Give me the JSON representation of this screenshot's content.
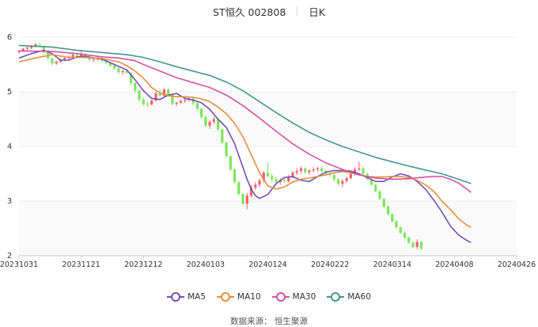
{
  "header": {
    "title": "ST恒久 002808",
    "period": "日K"
  },
  "footer": {
    "source": "数据来源：  恒生聚源"
  },
  "colors": {
    "up": "#f4636b",
    "down": "#7ee65a",
    "grid": "#ececec",
    "axis": "#c8c8c8"
  },
  "chart_data": {
    "type": "candlestick",
    "title": "ST恒久 002808",
    "ylim": [
      2,
      6
    ],
    "yticks": [
      2,
      3,
      4,
      5,
      6
    ],
    "date_ticks": [
      {
        "index": 0,
        "label": "20231031"
      },
      {
        "index": 15,
        "label": "20231121"
      },
      {
        "index": 30,
        "label": "20231212"
      },
      {
        "index": 45,
        "label": "20240103"
      },
      {
        "index": 60,
        "label": "20240124"
      },
      {
        "index": 75,
        "label": "20240222"
      },
      {
        "index": 90,
        "label": "20240314"
      },
      {
        "index": 105,
        "label": "20240408"
      },
      {
        "index": 120,
        "label": "20240426"
      }
    ],
    "ohlc": [
      [
        5.73,
        5.77,
        5.7,
        5.75
      ],
      [
        5.75,
        5.8,
        5.73,
        5.79
      ],
      [
        5.79,
        5.83,
        5.76,
        5.81
      ],
      [
        5.8,
        5.86,
        5.78,
        5.84
      ],
      [
        5.84,
        5.89,
        5.81,
        5.87
      ],
      [
        5.86,
        5.91,
        5.82,
        5.84
      ],
      [
        5.84,
        5.86,
        5.71,
        5.74
      ],
      [
        5.74,
        5.76,
        5.58,
        5.62
      ],
      [
        5.61,
        5.63,
        5.48,
        5.52
      ],
      [
        5.52,
        5.57,
        5.49,
        5.55
      ],
      [
        5.55,
        5.61,
        5.53,
        5.59
      ],
      [
        5.59,
        5.64,
        5.56,
        5.62
      ],
      [
        5.62,
        5.66,
        5.58,
        5.64
      ],
      [
        5.64,
        5.7,
        5.61,
        5.68
      ],
      [
        5.67,
        5.71,
        5.62,
        5.64
      ],
      [
        5.64,
        5.75,
        5.62,
        5.7
      ],
      [
        5.69,
        5.71,
        5.6,
        5.63
      ],
      [
        5.63,
        5.66,
        5.56,
        5.59
      ],
      [
        5.59,
        5.63,
        5.55,
        5.6
      ],
      [
        5.6,
        5.65,
        5.57,
        5.62
      ],
      [
        5.62,
        5.64,
        5.54,
        5.57
      ],
      [
        5.57,
        5.59,
        5.5,
        5.53
      ],
      [
        5.53,
        5.55,
        5.45,
        5.48
      ],
      [
        5.48,
        5.5,
        5.4,
        5.43
      ],
      [
        5.43,
        5.44,
        5.33,
        5.36
      ],
      [
        5.36,
        5.4,
        5.31,
        5.38
      ],
      [
        5.38,
        5.42,
        5.33,
        5.35
      ],
      [
        5.35,
        5.36,
        5.12,
        5.16
      ],
      [
        5.16,
        5.18,
        4.98,
        5.02
      ],
      [
        5.02,
        5.04,
        4.82,
        4.86
      ],
      [
        4.86,
        4.9,
        4.74,
        4.78
      ],
      [
        4.78,
        4.82,
        4.72,
        4.77
      ],
      [
        4.77,
        4.86,
        4.75,
        4.84
      ],
      [
        4.84,
        5.0,
        4.82,
        4.97
      ],
      [
        4.97,
        5.04,
        4.9,
        4.93
      ],
      [
        4.93,
        5.08,
        4.91,
        5.04
      ],
      [
        5.04,
        5.07,
        4.92,
        4.95
      ],
      [
        4.95,
        4.97,
        4.75,
        4.78
      ],
      [
        4.78,
        4.82,
        4.74,
        4.8
      ],
      [
        4.8,
        4.86,
        4.78,
        4.83
      ],
      [
        4.83,
        4.88,
        4.8,
        4.85
      ],
      [
        4.85,
        4.9,
        4.82,
        4.88
      ],
      [
        4.88,
        4.9,
        4.76,
        4.79
      ],
      [
        4.79,
        4.82,
        4.66,
        4.69
      ],
      [
        4.69,
        4.71,
        4.5,
        4.54
      ],
      [
        4.54,
        4.57,
        4.35,
        4.38
      ],
      [
        4.38,
        4.48,
        4.32,
        4.45
      ],
      [
        4.45,
        4.55,
        4.41,
        4.5
      ],
      [
        4.5,
        4.52,
        4.28,
        4.31
      ],
      [
        4.31,
        4.33,
        4.04,
        4.07
      ],
      [
        4.07,
        4.09,
        3.79,
        3.82
      ],
      [
        3.82,
        3.84,
        3.55,
        3.58
      ],
      [
        3.58,
        3.6,
        3.32,
        3.35
      ],
      [
        3.35,
        3.37,
        3.1,
        3.13
      ],
      [
        3.13,
        3.15,
        2.92,
        2.95
      ],
      [
        2.95,
        3.15,
        2.85,
        3.1
      ],
      [
        3.1,
        3.3,
        3.06,
        3.25
      ],
      [
        3.25,
        3.35,
        3.2,
        3.3
      ],
      [
        3.3,
        3.42,
        3.25,
        3.38
      ],
      [
        3.38,
        3.55,
        3.34,
        3.52
      ],
      [
        3.52,
        3.7,
        3.48,
        3.45
      ],
      [
        3.45,
        3.5,
        3.36,
        3.4
      ],
      [
        3.4,
        3.45,
        3.32,
        3.35
      ],
      [
        3.35,
        3.42,
        3.3,
        3.38
      ],
      [
        3.38,
        3.44,
        3.33,
        3.36
      ],
      [
        3.36,
        3.48,
        3.34,
        3.45
      ],
      [
        3.45,
        3.55,
        3.42,
        3.52
      ],
      [
        3.52,
        3.6,
        3.48,
        3.55
      ],
      [
        3.55,
        3.64,
        3.5,
        3.6
      ],
      [
        3.6,
        3.62,
        3.5,
        3.53
      ],
      [
        3.53,
        3.58,
        3.48,
        3.56
      ],
      [
        3.56,
        3.62,
        3.52,
        3.58
      ],
      [
        3.58,
        3.63,
        3.54,
        3.6
      ],
      [
        3.6,
        3.64,
        3.52,
        3.55
      ],
      [
        3.55,
        3.58,
        3.46,
        3.5
      ],
      [
        3.5,
        3.55,
        3.44,
        3.48
      ],
      [
        3.48,
        3.5,
        3.36,
        3.4
      ],
      [
        3.4,
        3.42,
        3.28,
        3.32
      ],
      [
        3.32,
        3.4,
        3.26,
        3.37
      ],
      [
        3.37,
        3.45,
        3.33,
        3.42
      ],
      [
        3.42,
        3.52,
        3.4,
        3.5
      ],
      [
        3.5,
        3.62,
        3.46,
        3.58
      ],
      [
        3.58,
        3.72,
        3.55,
        3.6
      ],
      [
        3.6,
        3.64,
        3.48,
        3.5
      ],
      [
        3.5,
        3.52,
        3.38,
        3.4
      ],
      [
        3.4,
        3.44,
        3.28,
        3.3
      ],
      [
        3.3,
        3.32,
        3.16,
        3.18
      ],
      [
        3.18,
        3.2,
        3.02,
        3.04
      ],
      [
        3.04,
        3.06,
        2.88,
        2.9
      ],
      [
        2.9,
        2.92,
        2.74,
        2.76
      ],
      [
        2.76,
        2.78,
        2.61,
        2.63
      ],
      [
        2.63,
        2.65,
        2.5,
        2.52
      ],
      [
        2.52,
        2.54,
        2.4,
        2.42
      ],
      [
        2.42,
        2.44,
        2.31,
        2.33
      ],
      [
        2.33,
        2.35,
        2.22,
        2.24
      ],
      [
        2.24,
        2.26,
        2.14,
        2.16
      ],
      [
        2.16,
        2.3,
        2.12,
        2.25
      ],
      [
        2.25,
        2.27,
        2.1,
        2.13
      ]
    ],
    "series": [
      {
        "name": "MA5",
        "color": "#7051b6",
        "points": [
          [
            0,
            5.62
          ],
          [
            3,
            5.7
          ],
          [
            6,
            5.76
          ],
          [
            8,
            5.7
          ],
          [
            10,
            5.58
          ],
          [
            12,
            5.58
          ],
          [
            14,
            5.64
          ],
          [
            16,
            5.65
          ],
          [
            18,
            5.62
          ],
          [
            20,
            5.6
          ],
          [
            23,
            5.5
          ],
          [
            26,
            5.4
          ],
          [
            28,
            5.22
          ],
          [
            30,
            5.02
          ],
          [
            32,
            4.88
          ],
          [
            34,
            4.86
          ],
          [
            36,
            4.94
          ],
          [
            38,
            4.97
          ],
          [
            40,
            4.88
          ],
          [
            42,
            4.85
          ],
          [
            44,
            4.8
          ],
          [
            46,
            4.68
          ],
          [
            48,
            4.5
          ],
          [
            50,
            4.35
          ],
          [
            52,
            4.05
          ],
          [
            54,
            3.62
          ],
          [
            55,
            3.4
          ],
          [
            56,
            3.22
          ],
          [
            57,
            3.1
          ],
          [
            58,
            3.05
          ],
          [
            60,
            3.12
          ],
          [
            62,
            3.32
          ],
          [
            64,
            3.43
          ],
          [
            66,
            3.45
          ],
          [
            68,
            3.38
          ],
          [
            70,
            3.36
          ],
          [
            72,
            3.45
          ],
          [
            74,
            3.53
          ],
          [
            76,
            3.56
          ],
          [
            78,
            3.56
          ],
          [
            80,
            3.55
          ],
          [
            82,
            3.5
          ],
          [
            84,
            3.43
          ],
          [
            86,
            3.36
          ],
          [
            88,
            3.36
          ],
          [
            90,
            3.44
          ],
          [
            92,
            3.5
          ],
          [
            94,
            3.46
          ],
          [
            96,
            3.36
          ],
          [
            98,
            3.22
          ],
          [
            100,
            3.02
          ],
          [
            102,
            2.8
          ],
          [
            104,
            2.55
          ],
          [
            106,
            2.38
          ],
          [
            108,
            2.28
          ],
          [
            109,
            2.24
          ]
        ]
      },
      {
        "name": "MA10",
        "color": "#e48d3e",
        "points": [
          [
            0,
            5.55
          ],
          [
            4,
            5.62
          ],
          [
            8,
            5.68
          ],
          [
            12,
            5.63
          ],
          [
            16,
            5.63
          ],
          [
            20,
            5.61
          ],
          [
            24,
            5.55
          ],
          [
            26,
            5.48
          ],
          [
            28,
            5.38
          ],
          [
            30,
            5.25
          ],
          [
            32,
            5.08
          ],
          [
            34,
            4.98
          ],
          [
            36,
            4.93
          ],
          [
            38,
            4.91
          ],
          [
            40,
            4.91
          ],
          [
            42,
            4.9
          ],
          [
            44,
            4.87
          ],
          [
            46,
            4.82
          ],
          [
            48,
            4.72
          ],
          [
            50,
            4.6
          ],
          [
            52,
            4.42
          ],
          [
            54,
            4.18
          ],
          [
            56,
            3.85
          ],
          [
            58,
            3.52
          ],
          [
            60,
            3.28
          ],
          [
            62,
            3.22
          ],
          [
            64,
            3.26
          ],
          [
            66,
            3.35
          ],
          [
            68,
            3.4
          ],
          [
            70,
            3.42
          ],
          [
            72,
            3.45
          ],
          [
            74,
            3.48
          ],
          [
            76,
            3.52
          ],
          [
            78,
            3.54
          ],
          [
            80,
            3.52
          ],
          [
            82,
            3.48
          ],
          [
            84,
            3.45
          ],
          [
            86,
            3.44
          ],
          [
            88,
            3.44
          ],
          [
            90,
            3.45
          ],
          [
            92,
            3.45
          ],
          [
            94,
            3.43
          ],
          [
            96,
            3.38
          ],
          [
            98,
            3.3
          ],
          [
            100,
            3.18
          ],
          [
            102,
            3.0
          ],
          [
            104,
            2.85
          ],
          [
            106,
            2.68
          ],
          [
            108,
            2.56
          ],
          [
            109,
            2.52
          ]
        ]
      },
      {
        "name": "MA30",
        "color": "#d253a5",
        "points": [
          [
            0,
            5.75
          ],
          [
            8,
            5.74
          ],
          [
            14,
            5.7
          ],
          [
            20,
            5.64
          ],
          [
            24,
            5.62
          ],
          [
            28,
            5.57
          ],
          [
            30,
            5.5
          ],
          [
            34,
            5.38
          ],
          [
            38,
            5.26
          ],
          [
            42,
            5.17
          ],
          [
            46,
            5.08
          ],
          [
            50,
            4.94
          ],
          [
            54,
            4.75
          ],
          [
            58,
            4.52
          ],
          [
            62,
            4.28
          ],
          [
            66,
            4.05
          ],
          [
            70,
            3.86
          ],
          [
            74,
            3.7
          ],
          [
            78,
            3.58
          ],
          [
            82,
            3.48
          ],
          [
            86,
            3.42
          ],
          [
            90,
            3.4
          ],
          [
            94,
            3.41
          ],
          [
            98,
            3.44
          ],
          [
            100,
            3.45
          ],
          [
            102,
            3.45
          ],
          [
            104,
            3.4
          ],
          [
            106,
            3.33
          ],
          [
            108,
            3.22
          ],
          [
            109,
            3.16
          ]
        ]
      },
      {
        "name": "MA60",
        "color": "#45978e",
        "points": [
          [
            0,
            5.85
          ],
          [
            8,
            5.82
          ],
          [
            14,
            5.76
          ],
          [
            20,
            5.72
          ],
          [
            26,
            5.68
          ],
          [
            30,
            5.63
          ],
          [
            34,
            5.55
          ],
          [
            38,
            5.46
          ],
          [
            42,
            5.38
          ],
          [
            46,
            5.3
          ],
          [
            50,
            5.18
          ],
          [
            54,
            5.02
          ],
          [
            58,
            4.82
          ],
          [
            62,
            4.62
          ],
          [
            66,
            4.43
          ],
          [
            70,
            4.26
          ],
          [
            74,
            4.12
          ],
          [
            78,
            4.0
          ],
          [
            82,
            3.9
          ],
          [
            86,
            3.8
          ],
          [
            90,
            3.72
          ],
          [
            94,
            3.64
          ],
          [
            98,
            3.57
          ],
          [
            102,
            3.5
          ],
          [
            106,
            3.4
          ],
          [
            109,
            3.32
          ]
        ]
      }
    ]
  }
}
